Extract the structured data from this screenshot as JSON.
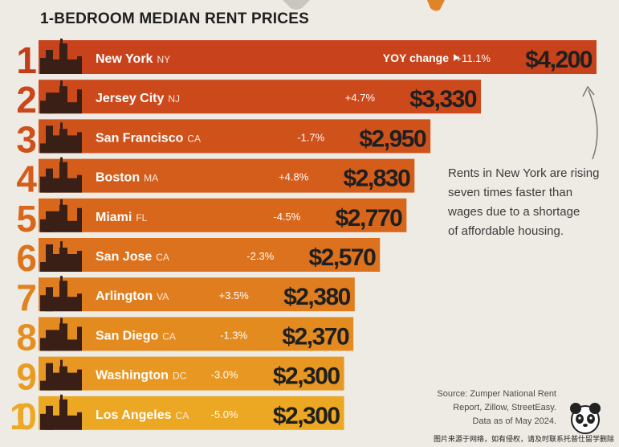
{
  "title": "1-BEDROOM MEDIAN RENT PRICES",
  "yoy_label": "YOY change",
  "annotation": [
    "Rents in New York are rising",
    "seven times faster than",
    "wages due to a shortage",
    "of affordable housing."
  ],
  "source": [
    "Source: Zumper National Rent",
    "Report, Zillow, StreetEasy.",
    "Data as of May 2024."
  ],
  "watermark": "图片来源于网络，如有侵权，请及时联系托普仕留学删除",
  "colors": {
    "bars": [
      "#c8421c",
      "#cc491b",
      "#d0521b",
      "#d45d1b",
      "#d8671c",
      "#dc721d",
      "#e07e1f",
      "#e48b20",
      "#e89822",
      "#eca723"
    ],
    "ranks": [
      "#c43d1a",
      "#c9471a",
      "#ce511b",
      "#d35c1c",
      "#d8671d",
      "#dc741e",
      "#e1821f",
      "#e58f21",
      "#e99c22",
      "#eda924"
    ],
    "text_dark": "#1f1f1f"
  },
  "chart_data": {
    "type": "bar",
    "orientation": "horizontal",
    "categories": [
      "New York",
      "Jersey City",
      "San Francisco",
      "Boston",
      "Miami",
      "San Jose",
      "Arlington",
      "San Diego",
      "Washington",
      "Los Angeles"
    ],
    "ranks": [
      "1",
      "2",
      "3",
      "4",
      "5",
      "6",
      "7",
      "8",
      "9",
      "10"
    ],
    "states": [
      "NY",
      "NJ",
      "CA",
      "MA",
      "FL",
      "CA",
      "VA",
      "CA",
      "DC",
      "CA"
    ],
    "values": [
      4200,
      3330,
      2950,
      2830,
      2770,
      2570,
      2380,
      2370,
      2300,
      2300
    ],
    "value_labels": [
      "$4,200",
      "$3,330",
      "$2,950",
      "$2,830",
      "$2,770",
      "$2,570",
      "$2,380",
      "$2,370",
      "$2,300",
      "$2,300"
    ],
    "yoy_change": [
      "+11.1%",
      "+4.7%",
      "-1.7%",
      "+4.8%",
      "-4.5%",
      "-2.3%",
      "+3.5%",
      "-1.3%",
      "-3.0%",
      "-5.0%"
    ]
  }
}
